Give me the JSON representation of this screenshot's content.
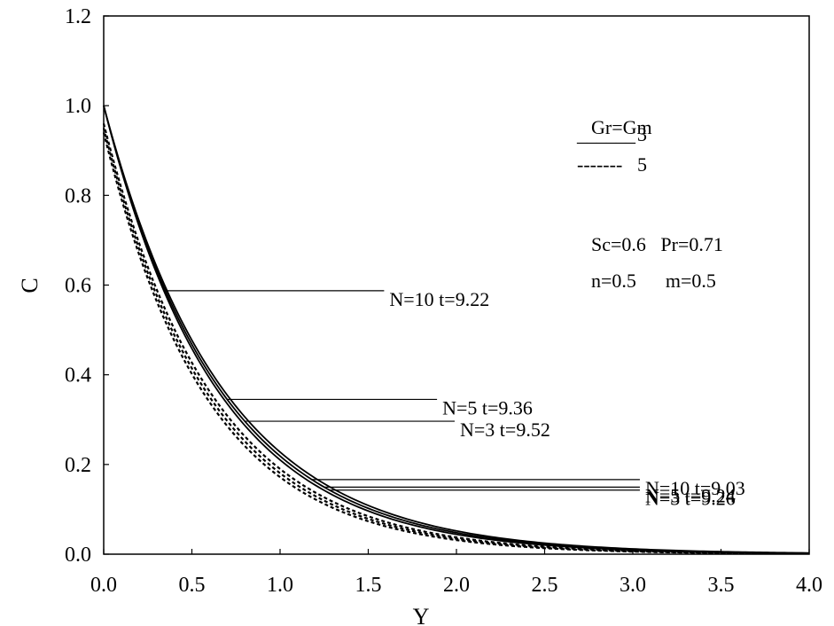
{
  "chart_data": {
    "type": "line",
    "xlabel": "Y",
    "ylabel": "C",
    "xlim": [
      0,
      4
    ],
    "ylim": [
      0,
      1.2
    ],
    "xticks": [
      "0.0",
      "0.5",
      "1.0",
      "1.5",
      "2.0",
      "2.5",
      "3.0",
      "3.5",
      "4.0"
    ],
    "yticks": [
      "0.0",
      "0.2",
      "0.4",
      "0.6",
      "0.8",
      "1.0",
      "1.2"
    ],
    "grid": false,
    "legend": {
      "title": "Gr=Gm",
      "items": [
        {
          "line": "______",
          "value": "3",
          "style": "solid"
        },
        {
          "line": "-------",
          "value": "5",
          "style": "dashed"
        }
      ]
    },
    "params_text": [
      "Sc=0.6   Pr=0.71",
      "n=0.5      m=0.5"
    ],
    "annotations": [
      {
        "text": "N=10  t=9.22",
        "at_x": 0.35,
        "text_x": 1.6
      },
      {
        "text": "N=5  t=9.36",
        "at_x": 0.7,
        "text_x": 1.9
      },
      {
        "text": "N=3  t=9.52",
        "at_x": 0.8,
        "text_x": 2.0
      },
      {
        "text": "N=10  t=9.03",
        "at_x": 1.18,
        "text_x": 3.05
      },
      {
        "text": "N=5  t=9.24",
        "at_x": 1.25,
        "text_x": 3.05
      },
      {
        "text": "N=3  t=9.26",
        "at_x": 1.28,
        "text_x": 3.05
      }
    ],
    "series": [
      {
        "style": "solid",
        "y0": 1.0,
        "k": 1.48
      },
      {
        "style": "solid",
        "y0": 1.0,
        "k": 1.52
      },
      {
        "style": "solid",
        "y0": 1.0,
        "k": 1.56
      },
      {
        "style": "dashed",
        "y0": 0.96,
        "k": 1.62
      },
      {
        "style": "dashed",
        "y0": 0.95,
        "k": 1.66
      },
      {
        "style": "dashed",
        "y0": 0.94,
        "k": 1.7
      }
    ]
  }
}
